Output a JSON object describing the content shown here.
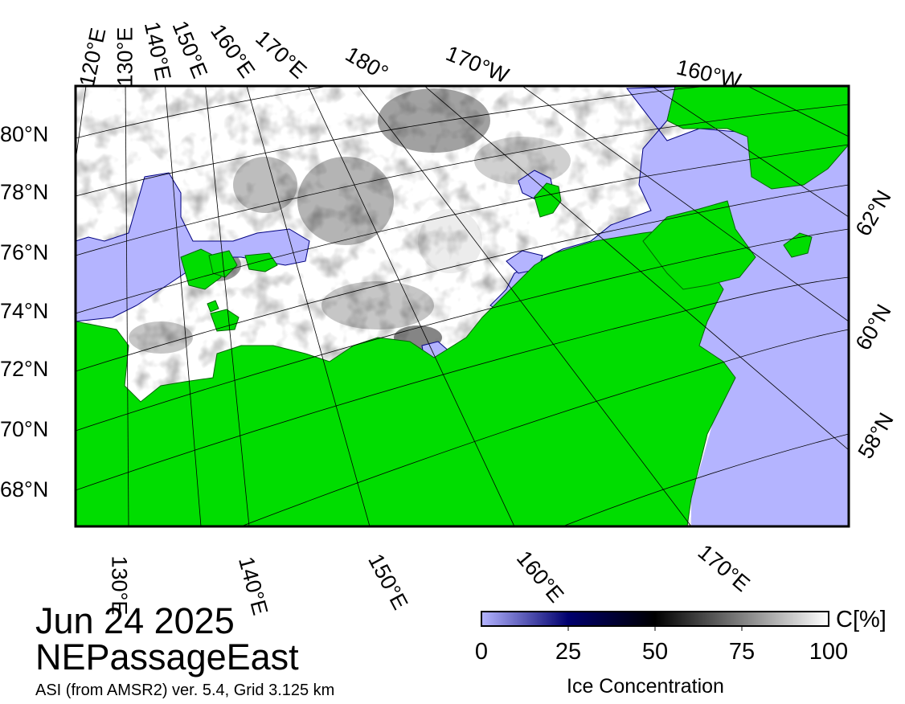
{
  "map": {
    "title_date": "Jun 24 2025",
    "region_name": "NEPassageEast",
    "product_info": "ASI (from AMSR2) ver. 5.4,  Grid 3.125 km",
    "colors": {
      "land": "#00dd00",
      "open_water": "#b4b4ff",
      "high_ice": "#ffffff",
      "low_ice": "#00006e",
      "graticule": "#000000"
    },
    "top_longitude_labels": [
      "120°E",
      "130°E",
      "140°E",
      "150°E",
      "160°E",
      "170°E",
      "180°",
      "170°W",
      "160°W"
    ],
    "left_latitude_labels": [
      "80°N",
      "78°N",
      "76°N",
      "74°N",
      "72°N",
      "70°N",
      "68°N"
    ],
    "bottom_longitude_labels": [
      "130°E",
      "140°E",
      "150°E",
      "160°E",
      "170°E"
    ],
    "right_latitude_labels": [
      "62°N",
      "60°N",
      "58°N"
    ]
  },
  "colorbar": {
    "ticks": [
      "0",
      "25",
      "50",
      "75",
      "100"
    ],
    "tick_values": [
      0,
      25,
      50,
      75,
      100
    ],
    "unit": "C[%]",
    "title": "Ice Concentration"
  }
}
